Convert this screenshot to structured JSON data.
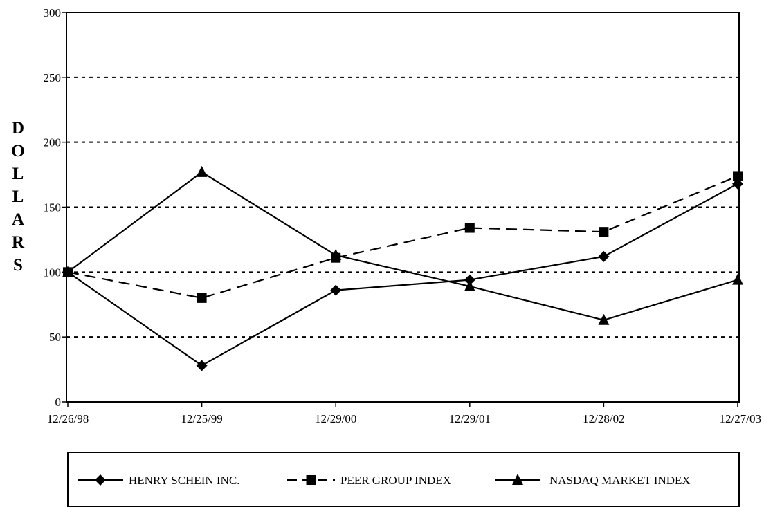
{
  "chart_data": {
    "type": "line",
    "title": "",
    "xlabel": "",
    "ylabel": "DOLLARS",
    "categories": [
      "12/26/98",
      "12/25/99",
      "12/29/00",
      "12/29/01",
      "12/28/02",
      "12/27/03"
    ],
    "yticks": [
      0,
      50,
      100,
      150,
      200,
      250,
      300
    ],
    "ylim": [
      0,
      300
    ],
    "grid": "horizontal dotted lines at y ticks",
    "legend_position": "bottom",
    "series": [
      {
        "name": "HENRY SCHEIN INC.",
        "values": [
          100,
          28,
          86,
          94,
          112,
          168
        ],
        "marker": "diamond",
        "line": "solid"
      },
      {
        "name": "PEER GROUP INDEX",
        "values": [
          100,
          80,
          111,
          134,
          131,
          174
        ],
        "marker": "square",
        "line": "dashed"
      },
      {
        "name": "NASDAQ MARKET INDEX",
        "values": [
          100,
          177,
          113,
          89,
          63,
          94
        ],
        "marker": "triangle",
        "line": "solid"
      }
    ]
  }
}
